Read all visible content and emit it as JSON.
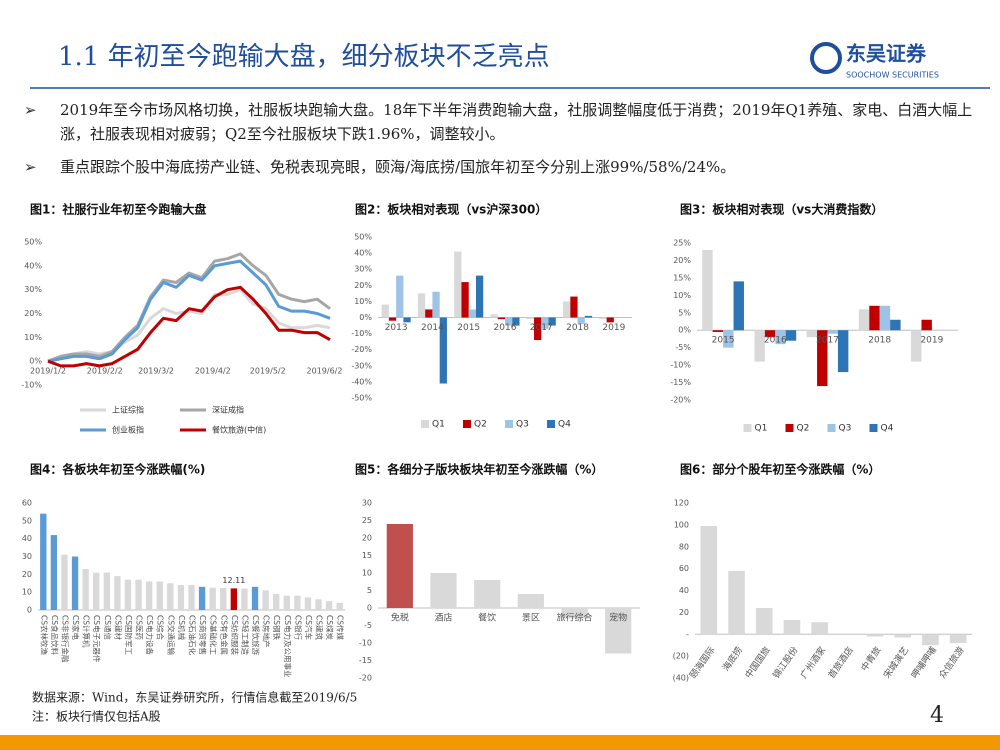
{
  "header": {
    "title": "1.1 年初至今跑输大盘，细分板块不乏亮点",
    "logo": "东吴证券",
    "logo_en": "SOOCHOW SECURITIES"
  },
  "bullets": [
    "2019年至今市场风格切换，社服板块跑输大盘。18年下半年消费跑输大盘，社服调整幅度低于消费；2019年Q1养殖、家电、白酒大幅上涨，社服表现相对疲弱；Q2至今社服板块下跌1.96%，调整较小。",
    "重点跟踪个股中海底捞产业链、免税表现亮眼，颐海/海底捞/国旅年初至今分别上涨99%/58%/24%。"
  ],
  "chart_data": [
    {
      "type": "line",
      "title": "图1：社服行业年初至今跑输大盘",
      "x": [
        "2019/1/2",
        "2019/1/9",
        "2019/1/16",
        "2019/1/23",
        "2019/1/30",
        "2019/2/6",
        "2019/2/13",
        "2019/2/20",
        "2019/2/27",
        "2019/3/6",
        "2019/3/13",
        "2019/3/20",
        "2019/3/27",
        "2019/4/3",
        "2019/4/10",
        "2019/4/17",
        "2019/4/24",
        "2019/5/1",
        "2019/5/8",
        "2019/5/15",
        "2019/5/22",
        "2019/5/29",
        "2019/6/5"
      ],
      "xticks": [
        "2019/1/2",
        "2019/2/2",
        "2019/3/2",
        "2019/4/2",
        "2019/5/2",
        "2019/6/2"
      ],
      "ylim": [
        -10,
        50
      ],
      "yticks": [
        {
          "value": -10,
          "label": "-10%"
        },
        {
          "value": 0,
          "label": "0%"
        },
        {
          "value": 10,
          "label": "10%"
        },
        {
          "value": 20,
          "label": "20%"
        },
        {
          "value": 30,
          "label": "30%"
        },
        {
          "value": 40,
          "label": "40%"
        },
        {
          "value": 50,
          "label": "50%"
        }
      ],
      "legend": true,
      "series": [
        {
          "name": "上证综指",
          "color": "#d9d9d9",
          "values": [
            0,
            2,
            3,
            4,
            3,
            4,
            8,
            11,
            18,
            22,
            20,
            21,
            20,
            28,
            28,
            30,
            24,
            22,
            16,
            14,
            14,
            15,
            14
          ]
        },
        {
          "name": "深证成指",
          "color": "#a6a6a6",
          "values": [
            0,
            2,
            3,
            3,
            2,
            4,
            10,
            15,
            27,
            34,
            33,
            37,
            35,
            42,
            43,
            45,
            40,
            36,
            28,
            26,
            25,
            26,
            22
          ]
        },
        {
          "name": "创业板指",
          "color": "#5b9bd5",
          "values": [
            0,
            1,
            2,
            2,
            1,
            3,
            9,
            14,
            26,
            33,
            31,
            36,
            34,
            40,
            41,
            42,
            37,
            32,
            23,
            21,
            21,
            20,
            18
          ]
        },
        {
          "name": "餐饮旅游(中信)",
          "color": "#c00000",
          "values": [
            0,
            -2,
            -2,
            -1,
            -2,
            -1,
            2,
            5,
            12,
            18,
            17,
            22,
            21,
            27,
            30,
            31,
            26,
            20,
            13,
            13,
            12,
            12,
            9
          ]
        }
      ]
    },
    {
      "type": "bar",
      "title": "图2：板块相对表现（vs沪深300）",
      "categories": [
        "2013",
        "2014",
        "2015",
        "2016",
        "2017",
        "2018",
        "2019"
      ],
      "ylim": [
        -50,
        50
      ],
      "yticks": [
        {
          "value": -50,
          "label": "-50%"
        },
        {
          "value": -40,
          "label": "-40%"
        },
        {
          "value": -30,
          "label": "-30%"
        },
        {
          "value": -20,
          "label": "-20%"
        },
        {
          "value": -10,
          "label": "-10%"
        },
        {
          "value": 0,
          "label": "0%"
        },
        {
          "value": 10,
          "label": "10%"
        },
        {
          "value": 20,
          "label": "20%"
        },
        {
          "value": 30,
          "label": "30%"
        },
        {
          "value": 40,
          "label": "40%"
        },
        {
          "value": 50,
          "label": "50%"
        }
      ],
      "legend": true,
      "series": [
        {
          "name": "Q1",
          "color": "#d9d9d9",
          "values": [
            8,
            15,
            41,
            2,
            -1,
            10,
            -1
          ]
        },
        {
          "name": "Q2",
          "color": "#c00000",
          "values": [
            -2,
            5,
            22,
            -1,
            -14,
            13,
            -3
          ]
        },
        {
          "name": "Q3",
          "color": "#9dc3e6",
          "values": [
            26,
            16,
            5,
            -5,
            -7,
            -4,
            null
          ]
        },
        {
          "name": "Q4",
          "color": "#2e75b6",
          "values": [
            -3,
            -41,
            26,
            -5,
            -5,
            1,
            null
          ]
        }
      ]
    },
    {
      "type": "bar",
      "title": "图3：板块相对表现（vs大消费指数）",
      "categories": [
        "2015",
        "2016",
        "2017",
        "2018",
        "2019"
      ],
      "ylim": [
        -20,
        25
      ],
      "yticks": [
        {
          "value": -20,
          "label": "-20%"
        },
        {
          "value": -15,
          "label": "-15%"
        },
        {
          "value": -10,
          "label": "-10%"
        },
        {
          "value": -5,
          "label": "-5%"
        },
        {
          "value": 0,
          "label": "0%"
        },
        {
          "value": 5,
          "label": "5%"
        },
        {
          "value": 10,
          "label": "10%"
        },
        {
          "value": 15,
          "label": "15%"
        },
        {
          "value": 20,
          "label": "20%"
        },
        {
          "value": 25,
          "label": "25%"
        }
      ],
      "legend": true,
      "series": [
        {
          "name": "Q1",
          "color": "#d9d9d9",
          "values": [
            23,
            -9,
            -2,
            6,
            -9
          ]
        },
        {
          "name": "Q2",
          "color": "#c00000",
          "values": [
            -0.5,
            -2,
            -16,
            7,
            3
          ]
        },
        {
          "name": "Q3",
          "color": "#9dc3e6",
          "values": [
            -5,
            -4,
            -1,
            7,
            null
          ]
        },
        {
          "name": "Q4",
          "color": "#2e75b6",
          "values": [
            14,
            -3,
            -12,
            3,
            null
          ]
        }
      ]
    },
    {
      "type": "bar",
      "title": "图4：各板块年初至今涨跌幅(%)",
      "categories": [
        "CS农林牧渔",
        "CS食品饮料",
        "CS非银行金融",
        "CS家电",
        "CS计算机",
        "CS电子元器件",
        "CS通信",
        "CS建材",
        "CS国防军工",
        "CS医药",
        "CS电力设备",
        "CS综合",
        "CS交通运输",
        "CS机械",
        "CS石油石化",
        "CS商贸零售",
        "CS基础化工",
        "CS有色金属",
        "CS纺织服装",
        "CS轻工制造",
        "CS餐饮旅游",
        "CS房地产",
        "CS钢铁",
        "CS电力及公用事业",
        "CS银行",
        "CS汽车",
        "CS建筑",
        "CS煤炭",
        "CS传媒"
      ],
      "values": [
        54,
        42,
        31,
        30,
        23,
        21,
        21,
        19,
        17,
        17,
        16,
        16,
        15,
        14,
        14,
        13,
        12.5,
        12.3,
        12.11,
        12,
        13,
        11,
        9,
        8,
        8,
        7,
        6,
        5,
        4
      ],
      "value_labels": [
        null,
        null,
        null,
        null,
        null,
        null,
        null,
        null,
        null,
        null,
        null,
        null,
        null,
        null,
        null,
        null,
        null,
        null,
        "12.11",
        null,
        null,
        null,
        null,
        null,
        null,
        null,
        null,
        null,
        null
      ],
      "colors": [
        "#5b9bd5",
        "#5b9bd5",
        "#d9d9d9",
        "#5b9bd5",
        "#d9d9d9",
        "#d9d9d9",
        "#d9d9d9",
        "#d9d9d9",
        "#d9d9d9",
        "#d9d9d9",
        "#d9d9d9",
        "#d9d9d9",
        "#d9d9d9",
        "#d9d9d9",
        "#d9d9d9",
        "#5b9bd5",
        "#d9d9d9",
        "#d9d9d9",
        "#c00000",
        "#d9d9d9",
        "#5b9bd5",
        "#d9d9d9",
        "#d9d9d9",
        "#d9d9d9",
        "#d9d9d9",
        "#d9d9d9",
        "#d9d9d9",
        "#d9d9d9",
        "#d9d9d9"
      ],
      "ylim": [
        0,
        60
      ],
      "yticks": [
        0,
        10,
        20,
        30,
        40,
        50,
        60
      ]
    },
    {
      "type": "bar",
      "title": "图5：各细分子版块板块年初至今涨跌幅（%）",
      "categories": [
        "免税",
        "酒店",
        "餐饮",
        "景区",
        "旅行综合",
        "宠物"
      ],
      "values": [
        24,
        10,
        8,
        4,
        -3,
        -13
      ],
      "colors": [
        "#c0504d",
        "#d9d9d9",
        "#d9d9d9",
        "#d9d9d9",
        "#d9d9d9",
        "#d9d9d9"
      ],
      "ylim": [
        -20,
        30
      ],
      "yticks": [
        -20,
        -15,
        -10,
        -5,
        0,
        5,
        10,
        15,
        20,
        25,
        30
      ]
    },
    {
      "type": "bar",
      "title": "图6：部分个股年初至今涨跌幅（%）",
      "categories": [
        "颐海国际",
        "海底捞",
        "中国国旅",
        "锦江股份",
        "广州酒家",
        "首旅酒店",
        "中青旅",
        "宋城演艺",
        "呷哺呷哺",
        "众信旅游"
      ],
      "values": [
        99,
        58,
        24,
        13,
        11,
        0,
        -2,
        -3,
        -10,
        -8
      ],
      "colors": [
        "#d9d9d9",
        "#d9d9d9",
        "#d9d9d9",
        "#d9d9d9",
        "#d9d9d9",
        "#d9d9d9",
        "#d9d9d9",
        "#d9d9d9",
        "#d9d9d9",
        "#d9d9d9"
      ],
      "ylim": [
        -40,
        120
      ],
      "yticks": [
        {
          "value": -40,
          "label": "(40)"
        },
        {
          "value": -20,
          "label": "(20)"
        },
        {
          "value": 0,
          "label": "-"
        },
        20,
        40,
        60,
        80,
        100,
        120
      ]
    }
  ],
  "footer": {
    "source": "数据来源：Wind，东吴证券研究所，行情信息截至2019/6/5",
    "note": "注：板块行情仅包括A股",
    "page": "4"
  }
}
